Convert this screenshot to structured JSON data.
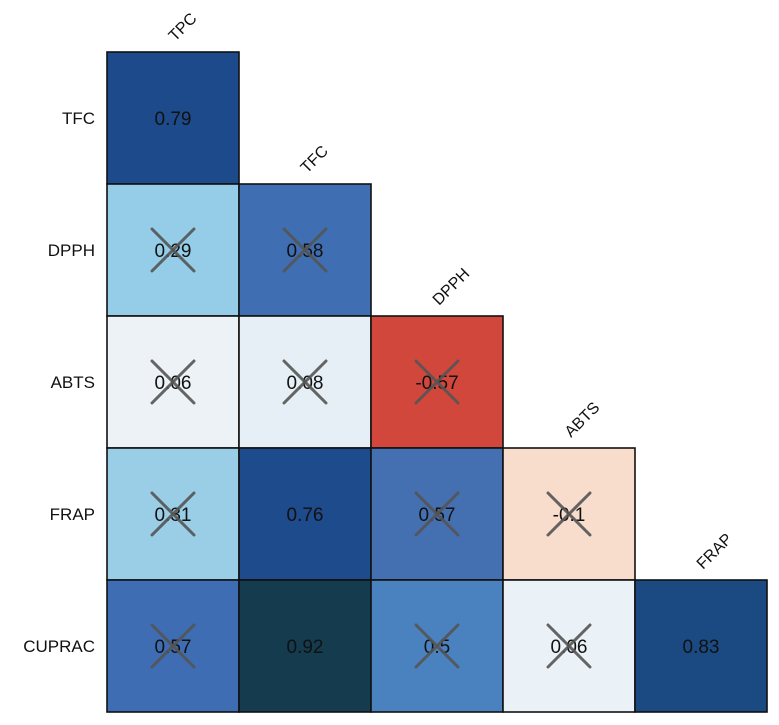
{
  "chart_data": {
    "type": "heatmap",
    "row_labels": [
      "TFC",
      "DPPH",
      "ABTS",
      "FRAP",
      "CUPRAC"
    ],
    "col_labels": [
      "TPC",
      "TFC",
      "DPPH",
      "ABTS",
      "FRAP"
    ],
    "cells": [
      [
        {
          "value": 0.79,
          "label": "0.79",
          "color": "#1c4a8a",
          "crossed": false
        },
        null,
        null,
        null,
        null
      ],
      [
        {
          "value": 0.29,
          "label": "0.29",
          "color": "#95cde8",
          "crossed": true
        },
        {
          "value": 0.58,
          "label": "0.58",
          "color": "#3f6eb3",
          "crossed": true
        },
        null,
        null,
        null
      ],
      [
        {
          "value": 0.06,
          "label": "0.06",
          "color": "#ecf2f6",
          "crossed": true
        },
        {
          "value": 0.08,
          "label": "0.08",
          "color": "#e6eff5",
          "crossed": true
        },
        {
          "value": -0.57,
          "label": "-0.57",
          "color": "#d2473b",
          "crossed": true
        },
        null,
        null
      ],
      [
        {
          "value": 0.31,
          "label": "0.31",
          "color": "#9acde6",
          "crossed": true
        },
        {
          "value": 0.76,
          "label": "0.76",
          "color": "#1d4b8b",
          "crossed": false
        },
        {
          "value": 0.57,
          "label": "0.57",
          "color": "#4470b1",
          "crossed": true
        },
        {
          "value": -0.1,
          "label": "-0.1",
          "color": "#f8dccc",
          "crossed": true
        },
        null
      ],
      [
        {
          "value": 0.57,
          "label": "0.57",
          "color": "#3e6db3",
          "crossed": true
        },
        {
          "value": 0.92,
          "label": "0.92",
          "color": "#143b4e",
          "crossed": false
        },
        {
          "value": 0.5,
          "label": "0.5",
          "color": "#4a82c0",
          "crossed": true
        },
        {
          "value": 0.06,
          "label": "0.06",
          "color": "#ebf2f7",
          "crossed": true
        },
        {
          "value": 0.83,
          "label": "0.83",
          "color": "#1b4a82",
          "crossed": false
        }
      ]
    ],
    "color_scale": {
      "negative": "#d2473b",
      "neutral": "#f4f4f4",
      "positive": "#143b4e"
    },
    "legend": "none"
  }
}
